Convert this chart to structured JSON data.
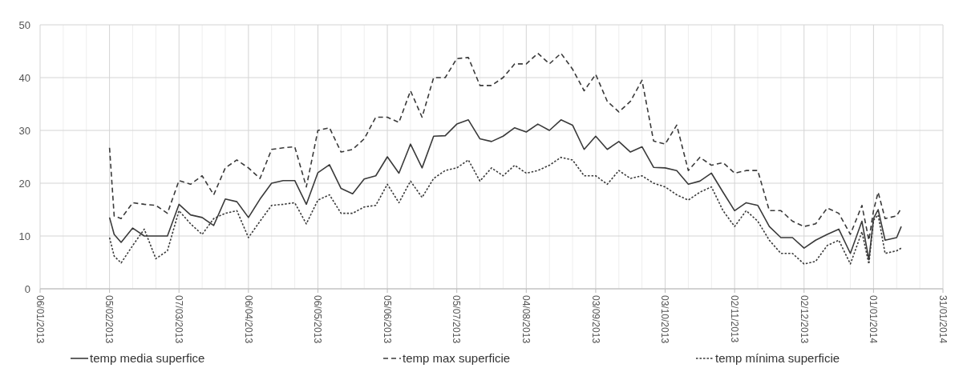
{
  "chart_data": {
    "type": "line",
    "grid": true,
    "legend": "bottom",
    "x": [
      "2013-02-05",
      "2013-02-07",
      "2013-02-10",
      "2013-02-15",
      "2013-02-20",
      "2013-02-25",
      "2013-03-02",
      "2013-03-07",
      "2013-03-12",
      "2013-03-17",
      "2013-03-22",
      "2013-03-27",
      "2013-04-01",
      "2013-04-06",
      "2013-04-11",
      "2013-04-16",
      "2013-04-21",
      "2013-04-26",
      "2013-05-01",
      "2013-05-06",
      "2013-05-11",
      "2013-05-16",
      "2013-05-21",
      "2013-05-26",
      "2013-05-31",
      "2013-06-05",
      "2013-06-10",
      "2013-06-15",
      "2013-06-20",
      "2013-06-25",
      "2013-06-30",
      "2013-07-05",
      "2013-07-10",
      "2013-07-15",
      "2013-07-20",
      "2013-07-25",
      "2013-07-30",
      "2013-08-04",
      "2013-08-09",
      "2013-08-14",
      "2013-08-19",
      "2013-08-24",
      "2013-08-29",
      "2013-09-03",
      "2013-09-08",
      "2013-09-13",
      "2013-09-18",
      "2013-09-23",
      "2013-09-28",
      "2013-10-03",
      "2013-10-08",
      "2013-10-13",
      "2013-10-18",
      "2013-10-23",
      "2013-10-28",
      "2013-11-02",
      "2013-11-07",
      "2013-11-12",
      "2013-11-17",
      "2013-11-22",
      "2013-11-27",
      "2013-12-02",
      "2013-12-07",
      "2013-12-12",
      "2013-12-17",
      "2013-12-22",
      "2013-12-27",
      "2013-12-30",
      "2014-01-01",
      "2014-01-03",
      "2014-01-06",
      "2014-01-11",
      "2014-01-13"
    ],
    "series": [
      {
        "name": "temp media superfice",
        "color": "#3a3a3a",
        "line_style": "solid",
        "values": [
          13.5,
          10.3,
          8.8,
          11.5,
          10,
          10,
          10,
          16,
          14,
          13.5,
          12,
          17,
          16.5,
          13.5,
          17,
          20,
          20.5,
          20.5,
          16,
          22,
          23.5,
          19,
          18,
          20.8,
          21.4,
          25,
          21.9,
          27.4,
          22.9,
          28.9,
          29,
          31.2,
          32,
          28.4,
          27.9,
          28.9,
          30.5,
          29.7,
          31.2,
          30,
          32,
          31,
          26.4,
          28.9,
          26.4,
          27.9,
          25.9,
          26.9,
          23,
          22.9,
          22.4,
          19.8,
          20.4,
          21.9,
          18.3,
          14.8,
          16.3,
          15.8,
          11.8,
          9.7,
          9.7,
          7.7,
          9.2,
          10.3,
          11.3,
          6.7,
          12.8,
          5.5,
          13.3,
          15,
          9.2,
          9.7,
          11.8
        ]
      },
      {
        "name": "temp max superficie",
        "color": "#3a3a3a",
        "line_style": "dashed",
        "values": [
          26.7,
          13.8,
          13.3,
          16.3,
          16,
          15.8,
          14.3,
          20.5,
          19.8,
          21.4,
          17.8,
          22.9,
          24.4,
          22.9,
          20.9,
          26.4,
          26.7,
          26.9,
          19.3,
          30,
          30.5,
          25.9,
          26.4,
          28.4,
          32.5,
          32.5,
          31.5,
          37.5,
          32.5,
          40,
          40,
          43.6,
          43.8,
          38.5,
          38.5,
          40,
          42.6,
          42.6,
          44.6,
          42.6,
          44.6,
          41.6,
          37.5,
          40.6,
          35.5,
          33.5,
          35.5,
          39.5,
          28,
          27.4,
          31,
          22.4,
          24.9,
          23.4,
          23.9,
          21.9,
          22.4,
          22.4,
          14.8,
          14.8,
          12.8,
          11.8,
          12.3,
          15.3,
          14.3,
          10.3,
          15.8,
          9.2,
          14.8,
          18.3,
          13.3,
          13.8,
          15.3
        ]
      },
      {
        "name": "temp mínima superficie",
        "color": "#3a3a3a",
        "line_style": "dotted",
        "values": [
          9.7,
          6.2,
          4.9,
          8.2,
          11.3,
          5.7,
          7.2,
          14.8,
          12.3,
          10.3,
          13.3,
          14.3,
          14.8,
          9.7,
          12.8,
          15.8,
          16,
          16.3,
          12.3,
          16.8,
          17.8,
          14.3,
          14.3,
          15.5,
          15.8,
          19.8,
          16.3,
          20.4,
          17.3,
          20.9,
          22.4,
          22.9,
          24.4,
          20.4,
          22.9,
          21.4,
          23.4,
          21.9,
          22.4,
          23.4,
          24.9,
          24.4,
          21.4,
          21.4,
          19.8,
          22.4,
          20.9,
          21.4,
          20,
          19.3,
          17.8,
          16.8,
          18.3,
          19.3,
          14.8,
          11.8,
          14.8,
          12.8,
          9.2,
          6.7,
          6.7,
          4.7,
          5.2,
          8.2,
          9.2,
          4.7,
          10.8,
          4.7,
          13,
          14,
          6.7,
          7.2,
          7.7
        ]
      }
    ],
    "xlim": [
      "2013-01-06",
      "2014-01-31"
    ],
    "xticks": [
      {
        "value": "2013-01-06",
        "label": "06/01/2013"
      },
      {
        "value": "2013-02-05",
        "label": "05/02/2013"
      },
      {
        "value": "2013-03-07",
        "label": "07/03/2013"
      },
      {
        "value": "2013-04-06",
        "label": "06/04/2013"
      },
      {
        "value": "2013-05-06",
        "label": "06/05/2013"
      },
      {
        "value": "2013-06-05",
        "label": "05/06/2013"
      },
      {
        "value": "2013-07-05",
        "label": "05/07/2013"
      },
      {
        "value": "2013-08-04",
        "label": "04/08/2013"
      },
      {
        "value": "2013-09-03",
        "label": "03/09/2013"
      },
      {
        "value": "2013-10-03",
        "label": "03/10/2013"
      },
      {
        "value": "2013-11-02",
        "label": "02/11/2013"
      },
      {
        "value": "2013-12-02",
        "label": "02/12/2013"
      },
      {
        "value": "2014-01-01",
        "label": "01/01/2014"
      },
      {
        "value": "2014-01-31",
        "label": "31/01/2014"
      }
    ],
    "ylim": [
      0,
      50
    ],
    "yticks": [
      0,
      10,
      20,
      30,
      40,
      50
    ]
  }
}
